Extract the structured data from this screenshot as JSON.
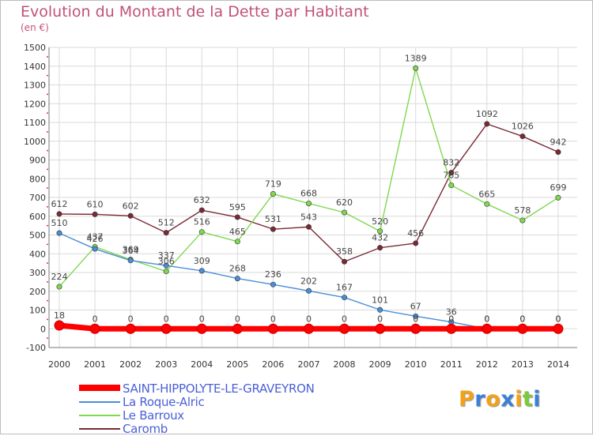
{
  "chart_data": {
    "type": "line",
    "title": "Evolution du Montant de la Dette par Habitant",
    "subtitle": "(en €)",
    "x": [
      "2000",
      "2001",
      "2002",
      "2003",
      "2004",
      "2005",
      "2006",
      "2007",
      "2008",
      "2009",
      "2010",
      "2011",
      "2012",
      "2013",
      "2014"
    ],
    "ylim": [
      -100,
      1500
    ],
    "yticks": [
      "-100",
      "0",
      "100",
      "200",
      "300",
      "400",
      "500",
      "600",
      "700",
      "800",
      "900",
      "1000",
      "1100",
      "1200",
      "1300",
      "1400",
      "1500"
    ],
    "grid": true,
    "legend_position": "bottom-left",
    "series": [
      {
        "name": "SAINT-HIPPOLYTE-LE-GRAVEYRON",
        "color": "#ff0000",
        "values": [
          18,
          0,
          0,
          0,
          0,
          0,
          0,
          0,
          0,
          0,
          0,
          0,
          0,
          0,
          0
        ],
        "labels": [
          "18",
          "0",
          "0",
          "0",
          "0",
          "0",
          "0",
          "0",
          "0",
          "0",
          "0",
          "0",
          "0",
          "0",
          "0"
        ]
      },
      {
        "name": "La Roque-Alric",
        "color": "#4a8ed6",
        "values": [
          510,
          426,
          364,
          337,
          309,
          268,
          236,
          202,
          167,
          101,
          67,
          36,
          0,
          0,
          0
        ],
        "labels": [
          "510",
          "426",
          "364",
          "337",
          "309",
          "268",
          "236",
          "202",
          "167",
          "101",
          "67",
          "36",
          "0",
          "0",
          "0"
        ]
      },
      {
        "name": "Le Barroux",
        "color": "#7fd850",
        "values": [
          224,
          437,
          369,
          306,
          516,
          465,
          719,
          668,
          620,
          520,
          1389,
          765,
          665,
          578,
          699
        ],
        "labels": [
          "224",
          "437",
          "369",
          "306",
          "516",
          "465",
          "719",
          "668",
          "620",
          "520",
          "1389",
          "765",
          "665",
          "578",
          "699"
        ]
      },
      {
        "name": "Caromb",
        "color": "#7a2a33",
        "values": [
          612,
          610,
          602,
          512,
          632,
          595,
          531,
          543,
          358,
          432,
          456,
          832,
          1092,
          1026,
          942
        ],
        "labels": [
          "612",
          "610",
          "602",
          "512",
          "632",
          "595",
          "531",
          "543",
          "358",
          "432",
          "456",
          "832",
          "1092",
          "1026",
          "942"
        ]
      }
    ]
  },
  "logo": {
    "letters": [
      "P",
      "r",
      "o",
      "x",
      "i",
      "t",
      "i"
    ],
    "colors": [
      "#f2a21a",
      "#3a7fd8",
      "#f2a21a",
      "#3a7fd8",
      "#f2a21a",
      "#7ec93a",
      "#3a7fd8"
    ]
  }
}
